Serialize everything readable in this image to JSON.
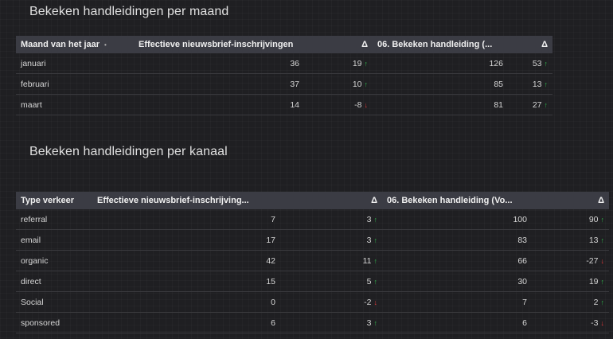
{
  "monthly": {
    "title": "Bekeken handleidingen per maand",
    "headers": {
      "month": "Maand van het jaar",
      "signups": "Effectieve nieuwsbrief-inschrijvingen",
      "delta1": "Δ",
      "manuals": "06. Bekeken handleiding (...",
      "delta2": "Δ"
    },
    "rows": [
      {
        "month": "januari",
        "signups": "36",
        "delta1": "19",
        "delta1_dir": "up",
        "manuals": "126",
        "delta2": "53",
        "delta2_dir": "up"
      },
      {
        "month": "februari",
        "signups": "37",
        "delta1": "10",
        "delta1_dir": "up",
        "manuals": "85",
        "delta2": "13",
        "delta2_dir": "up"
      },
      {
        "month": "maart",
        "signups": "14",
        "delta1": "-8",
        "delta1_dir": "down",
        "manuals": "81",
        "delta2": "27",
        "delta2_dir": "up"
      }
    ]
  },
  "channel": {
    "title": "Bekeken handleidingen per kanaal",
    "headers": {
      "type": "Type verkeer",
      "signups": "Effectieve nieuwsbrief-inschrijving...",
      "delta1": "Δ",
      "manuals": "06. Bekeken handleiding (Vo...",
      "delta2": "Δ"
    },
    "rows": [
      {
        "type": "referral",
        "signups": "7",
        "delta1": "3",
        "delta1_dir": "up",
        "manuals": "100",
        "delta2": "90",
        "delta2_dir": "up"
      },
      {
        "type": "email",
        "signups": "17",
        "delta1": "3",
        "delta1_dir": "up",
        "manuals": "83",
        "delta2": "13",
        "delta2_dir": "up"
      },
      {
        "type": "organic",
        "signups": "42",
        "delta1": "11",
        "delta1_dir": "up",
        "manuals": "66",
        "delta2": "-27",
        "delta2_dir": "down"
      },
      {
        "type": "direct",
        "signups": "15",
        "delta1": "5",
        "delta1_dir": "up",
        "manuals": "30",
        "delta2": "19",
        "delta2_dir": "up"
      },
      {
        "type": "Social",
        "signups": "0",
        "delta1": "-2",
        "delta1_dir": "down",
        "manuals": "7",
        "delta2": "2",
        "delta2_dir": "up"
      },
      {
        "type": "sponsored",
        "signups": "6",
        "delta1": "3",
        "delta1_dir": "up",
        "manuals": "6",
        "delta2": "-3",
        "delta2_dir": "down"
      }
    ]
  },
  "icons": {
    "up": "↑",
    "down": "↓",
    "sort": "▲"
  },
  "colors": {
    "background": "#1f1f22",
    "header_bg": "#3b3c44",
    "up": "#2fb04a",
    "down": "#e03a3a"
  }
}
